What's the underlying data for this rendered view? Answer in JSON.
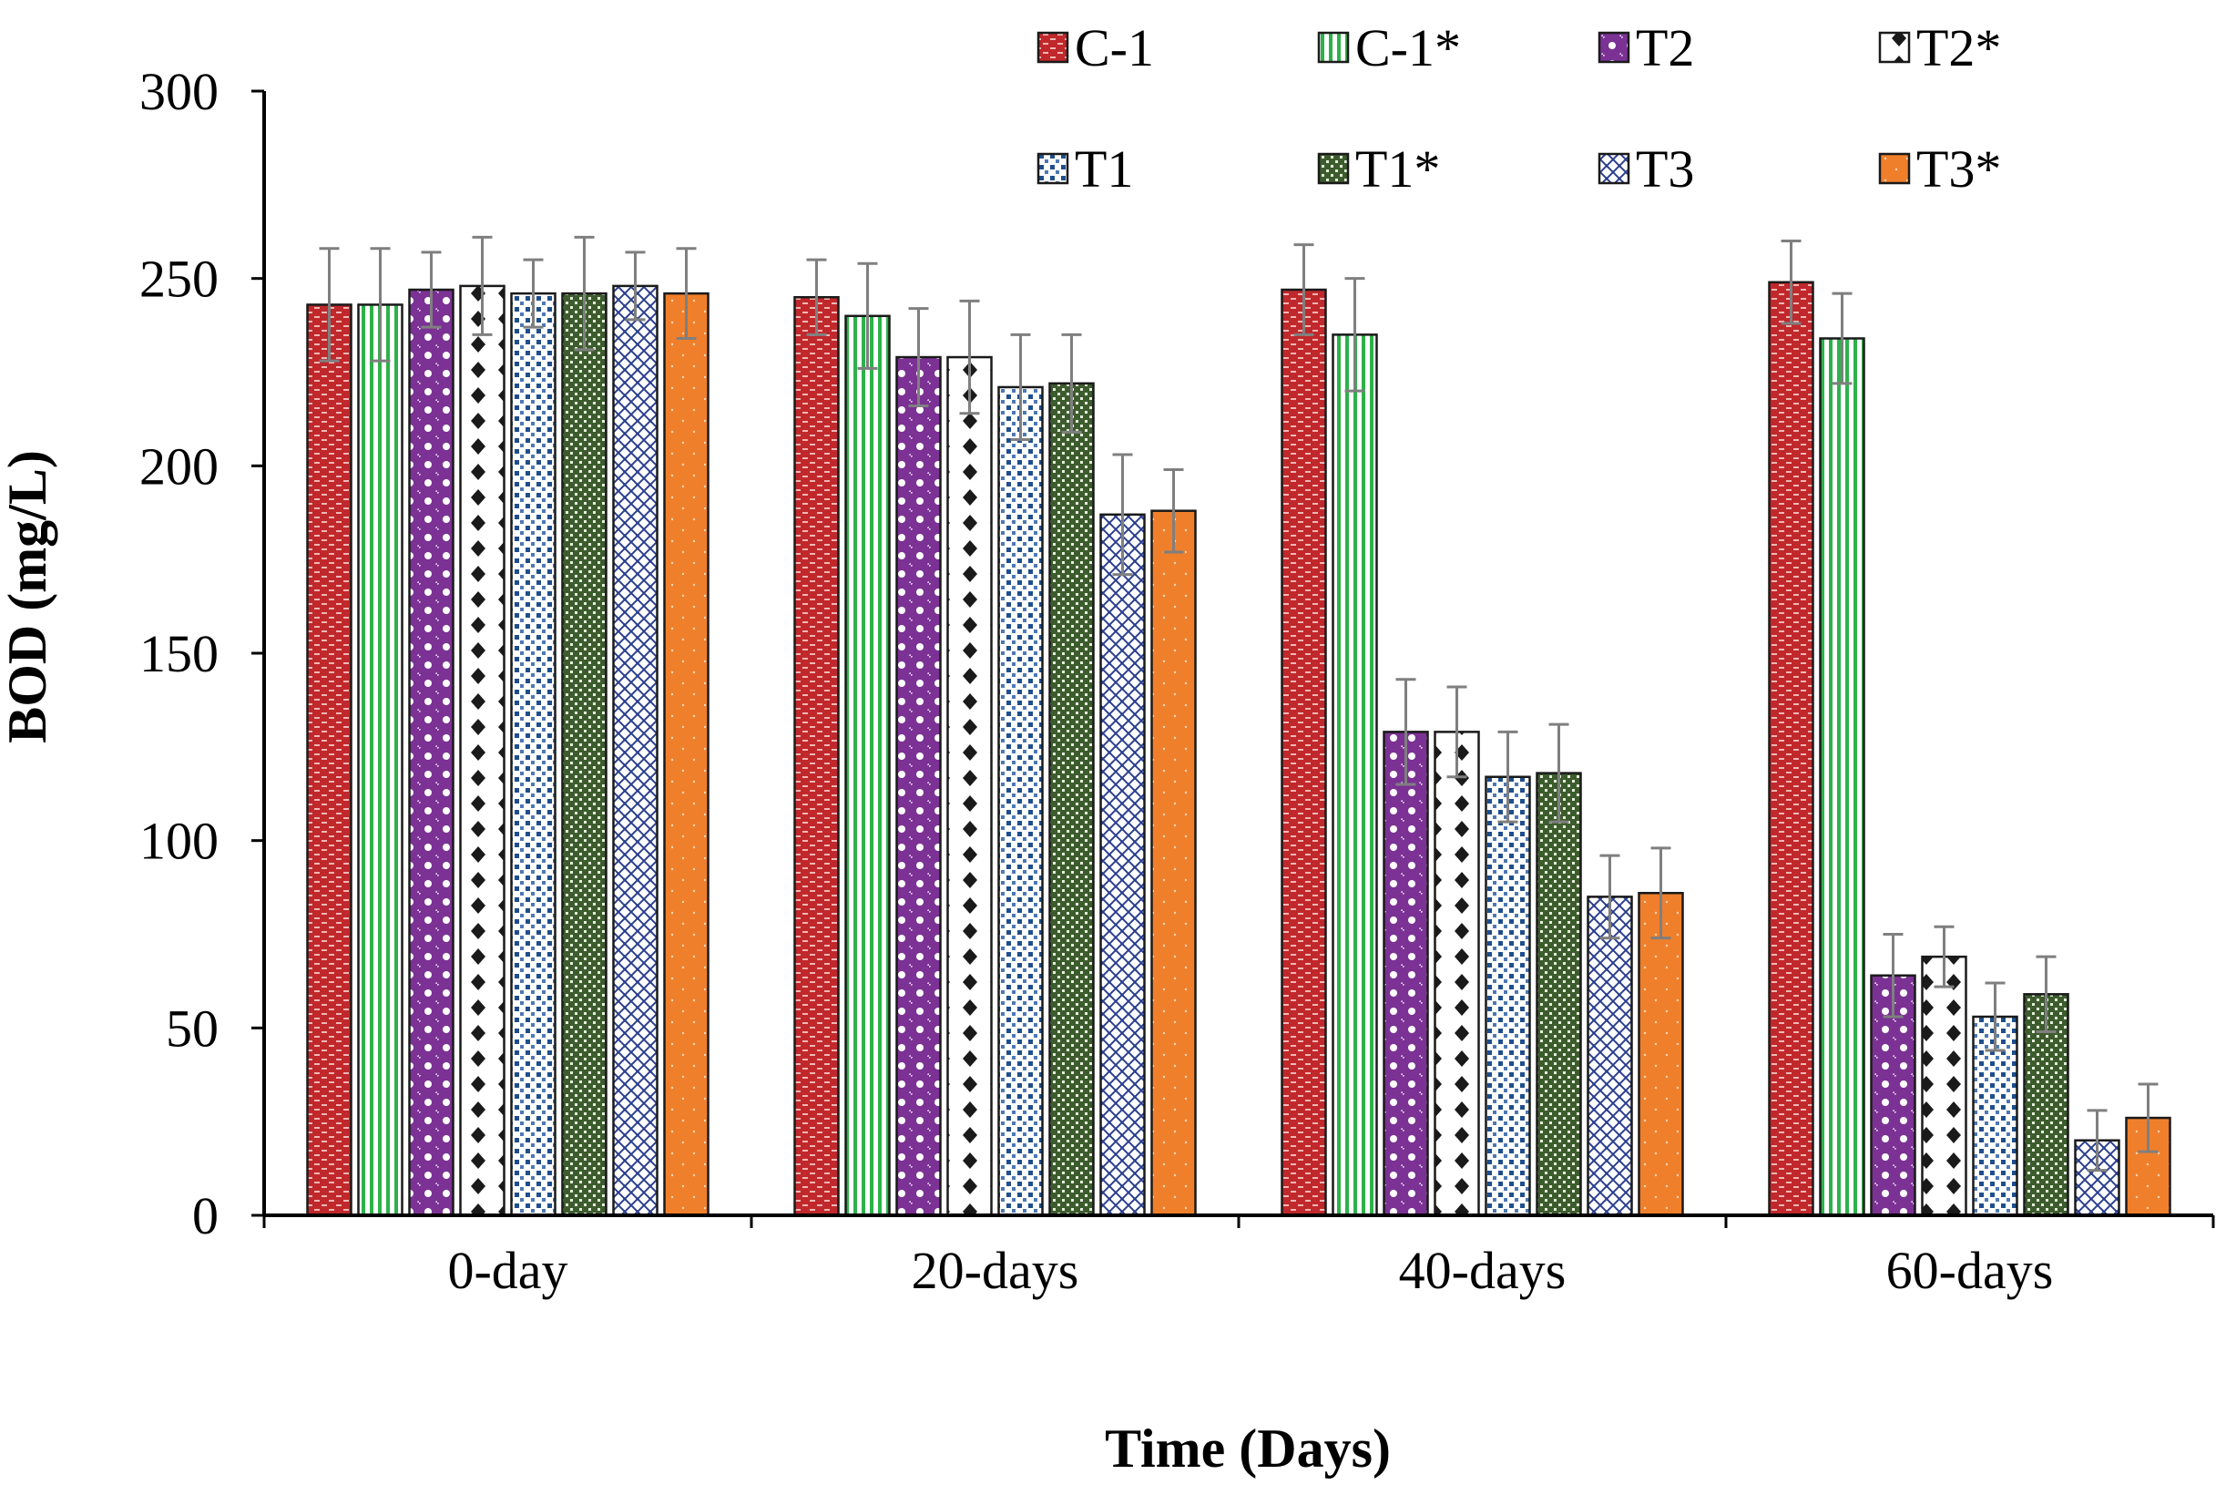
{
  "chart_data": {
    "type": "bar",
    "title": "",
    "xlabel": "Time (Days)",
    "ylabel": "BOD (mg/L)",
    "ylim": [
      0,
      300
    ],
    "yticks": [
      0,
      50,
      100,
      150,
      200,
      250,
      300
    ],
    "grid": false,
    "legend_position": "top",
    "categories": [
      "0-day",
      "20-days",
      "40-days",
      "60-days"
    ],
    "series": [
      {
        "name": "C-1",
        "color": "#c0282c",
        "pattern": "brick",
        "values": [
          243,
          245,
          247,
          249
        ],
        "errors": [
          15,
          10,
          12,
          11
        ]
      },
      {
        "name": "C-1*",
        "color": "#2db24a",
        "pattern": "vlines",
        "values": [
          243,
          240,
          235,
          234
        ],
        "errors": [
          15,
          14,
          15,
          12
        ]
      },
      {
        "name": "T2",
        "color": "#7b3294",
        "pattern": "circles",
        "values": [
          247,
          229,
          129,
          64
        ],
        "errors": [
          10,
          13,
          14,
          11
        ]
      },
      {
        "name": "T2*",
        "color": "#1a1a1a",
        "pattern": "diamonds",
        "values": [
          248,
          229,
          129,
          69
        ],
        "errors": [
          13,
          15,
          12,
          8
        ]
      },
      {
        "name": "T1",
        "color": "#1f4e8c",
        "pattern": "dots",
        "values": [
          246,
          221,
          117,
          53
        ],
        "errors": [
          9,
          14,
          12,
          9
        ]
      },
      {
        "name": "T1*",
        "color": "#3d5c2e",
        "pattern": "grid",
        "values": [
          246,
          222,
          118,
          59
        ],
        "errors": [
          15,
          13,
          13,
          10
        ]
      },
      {
        "name": "T3",
        "color": "#2b3f8f",
        "pattern": "weave",
        "values": [
          248,
          187,
          85,
          20
        ],
        "errors": [
          9,
          16,
          11,
          8
        ]
      },
      {
        "name": "T3*",
        "color": "#f07f2b",
        "pattern": "solid",
        "values": [
          246,
          188,
          86,
          26
        ],
        "errors": [
          12,
          11,
          12,
          9
        ]
      }
    ]
  }
}
